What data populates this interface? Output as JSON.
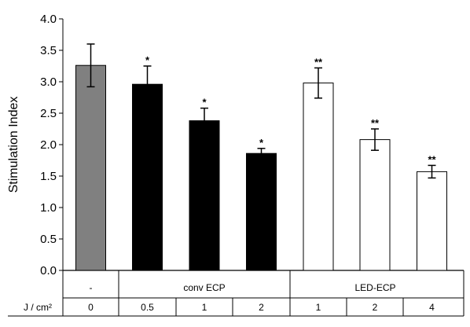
{
  "chart_data": {
    "type": "bar",
    "ylabel": "Stimulation Index",
    "ylim": [
      0.0,
      4.0
    ],
    "y_ticks": [
      "0.0",
      "0.5",
      "1.0",
      "1.5",
      "2.0",
      "2.5",
      "3.0",
      "3.5",
      "4.0"
    ],
    "bars": [
      {
        "group": "-",
        "dose": "0",
        "value": 3.26,
        "error": 0.34,
        "fill": "#808080",
        "significance": ""
      },
      {
        "group": "conv ECP",
        "dose": "0.5",
        "value": 2.96,
        "error": 0.29,
        "fill": "#000000",
        "significance": "*"
      },
      {
        "group": "conv ECP",
        "dose": "1",
        "value": 2.38,
        "error": 0.2,
        "fill": "#000000",
        "significance": "*"
      },
      {
        "group": "conv ECP",
        "dose": "2",
        "value": 1.86,
        "error": 0.08,
        "fill": "#000000",
        "significance": "*"
      },
      {
        "group": "LED-ECP",
        "dose": "1",
        "value": 2.98,
        "error": 0.24,
        "fill": "#ffffff",
        "significance": "**"
      },
      {
        "group": "LED-ECP",
        "dose": "2",
        "value": 2.08,
        "error": 0.17,
        "fill": "#ffffff",
        "significance": "**"
      },
      {
        "group": "LED-ECP",
        "dose": "4",
        "value": 1.57,
        "error": 0.1,
        "fill": "#ffffff",
        "significance": "**"
      }
    ],
    "groups": [
      {
        "label": "-",
        "span": 1
      },
      {
        "label": "conv ECP",
        "span": 3
      },
      {
        "label": "LED-ECP",
        "span": 3
      }
    ],
    "dose_row_label": "J / cm²",
    "grid": false
  }
}
